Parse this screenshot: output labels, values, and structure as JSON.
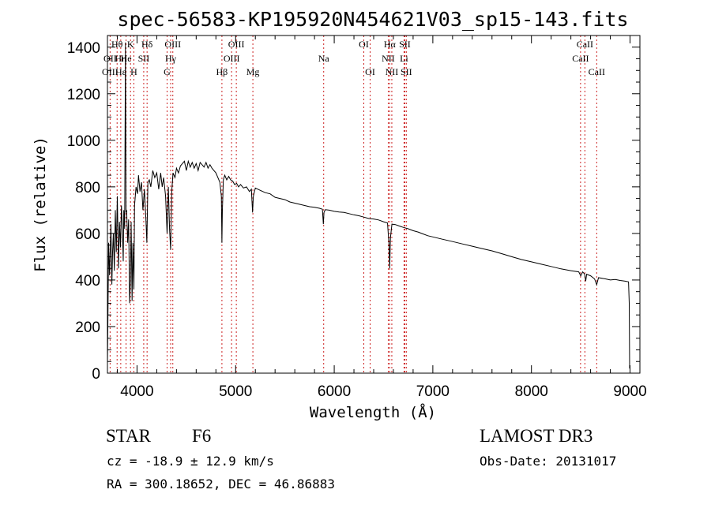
{
  "chart_data": {
    "type": "line",
    "title": "spec-56583-KP195920N454621V03_sp15-143.fits",
    "xlabel": "Wavelength (Å)",
    "ylabel": "Flux (relative)",
    "xlim": [
      3700,
      9100
    ],
    "ylim": [
      0,
      1450
    ],
    "xticks": [
      4000,
      5000,
      6000,
      7000,
      8000,
      9000
    ],
    "yticks": [
      0,
      200,
      400,
      600,
      800,
      1000,
      1200,
      1400
    ],
    "series": [
      {
        "name": "flux",
        "points": [
          [
            3700,
            40
          ],
          [
            3705,
            230
          ],
          [
            3712,
            560
          ],
          [
            3722,
            420
          ],
          [
            3735,
            640
          ],
          [
            3745,
            380
          ],
          [
            3752,
            520
          ],
          [
            3760,
            600
          ],
          [
            3770,
            440
          ],
          [
            3780,
            700
          ],
          [
            3790,
            520
          ],
          [
            3800,
            760
          ],
          [
            3812,
            450
          ],
          [
            3822,
            650
          ],
          [
            3832,
            540
          ],
          [
            3842,
            720
          ],
          [
            3852,
            610
          ],
          [
            3860,
            480
          ],
          [
            3866,
            700
          ],
          [
            3875,
            620
          ],
          [
            3883,
            1420
          ],
          [
            3888,
            690
          ],
          [
            3895,
            700
          ],
          [
            3905,
            560
          ],
          [
            3915,
            660
          ],
          [
            3925,
            300
          ],
          [
            3933,
            400
          ],
          [
            3940,
            650
          ],
          [
            3950,
            310
          ],
          [
            3958,
            560
          ],
          [
            3968,
            360
          ],
          [
            3975,
            720
          ],
          [
            3990,
            800
          ],
          [
            4005,
            770
          ],
          [
            4015,
            850
          ],
          [
            4030,
            780
          ],
          [
            4045,
            820
          ],
          [
            4060,
            700
          ],
          [
            4075,
            790
          ],
          [
            4090,
            660
          ],
          [
            4100,
            560
          ],
          [
            4110,
            820
          ],
          [
            4125,
            830
          ],
          [
            4140,
            800
          ],
          [
            4160,
            870
          ],
          [
            4180,
            840
          ],
          [
            4200,
            860
          ],
          [
            4220,
            790
          ],
          [
            4240,
            860
          ],
          [
            4255,
            800
          ],
          [
            4270,
            840
          ],
          [
            4290,
            760
          ],
          [
            4305,
            600
          ],
          [
            4318,
            800
          ],
          [
            4330,
            620
          ],
          [
            4341,
            530
          ],
          [
            4352,
            780
          ],
          [
            4365,
            860
          ],
          [
            4385,
            840
          ],
          [
            4400,
            880
          ],
          [
            4420,
            860
          ],
          [
            4440,
            890
          ],
          [
            4460,
            900
          ],
          [
            4480,
            910
          ],
          [
            4500,
            870
          ],
          [
            4520,
            910
          ],
          [
            4540,
            885
          ],
          [
            4560,
            905
          ],
          [
            4580,
            880
          ],
          [
            4600,
            900
          ],
          [
            4620,
            870
          ],
          [
            4640,
            905
          ],
          [
            4660,
            895
          ],
          [
            4680,
            885
          ],
          [
            4700,
            905
          ],
          [
            4720,
            880
          ],
          [
            4740,
            895
          ],
          [
            4760,
            880
          ],
          [
            4780,
            870
          ],
          [
            4800,
            860
          ],
          [
            4820,
            840
          ],
          [
            4840,
            820
          ],
          [
            4855,
            760
          ],
          [
            4861,
            560
          ],
          [
            4866,
            700
          ],
          [
            4875,
            830
          ],
          [
            4890,
            850
          ],
          [
            4910,
            830
          ],
          [
            4930,
            845
          ],
          [
            4950,
            830
          ],
          [
            4970,
            825
          ],
          [
            4990,
            810
          ],
          [
            5010,
            815
          ],
          [
            5030,
            800
          ],
          [
            5050,
            810
          ],
          [
            5080,
            795
          ],
          [
            5110,
            800
          ],
          [
            5140,
            780
          ],
          [
            5160,
            790
          ],
          [
            5172,
            690
          ],
          [
            5180,
            760
          ],
          [
            5200,
            795
          ],
          [
            5250,
            785
          ],
          [
            5300,
            775
          ],
          [
            5350,
            770
          ],
          [
            5400,
            755
          ],
          [
            5450,
            750
          ],
          [
            5500,
            745
          ],
          [
            5550,
            735
          ],
          [
            5600,
            730
          ],
          [
            5650,
            725
          ],
          [
            5700,
            720
          ],
          [
            5750,
            715
          ],
          [
            5800,
            712
          ],
          [
            5850,
            708
          ],
          [
            5880,
            704
          ],
          [
            5890,
            640
          ],
          [
            5896,
            690
          ],
          [
            5910,
            702
          ],
          [
            5950,
            700
          ],
          [
            6000,
            695
          ],
          [
            6050,
            692
          ],
          [
            6100,
            690
          ],
          [
            6150,
            685
          ],
          [
            6200,
            680
          ],
          [
            6250,
            676
          ],
          [
            6300,
            670
          ],
          [
            6350,
            664
          ],
          [
            6400,
            662
          ],
          [
            6450,
            658
          ],
          [
            6500,
            650
          ],
          [
            6540,
            645
          ],
          [
            6555,
            560
          ],
          [
            6563,
            450
          ],
          [
            6570,
            580
          ],
          [
            6585,
            640
          ],
          [
            6620,
            638
          ],
          [
            6660,
            632
          ],
          [
            6700,
            626
          ],
          [
            6750,
            620
          ],
          [
            6800,
            612
          ],
          [
            6850,
            606
          ],
          [
            6900,
            598
          ],
          [
            6950,
            590
          ],
          [
            7000,
            585
          ],
          [
            7100,
            575
          ],
          [
            7200,
            565
          ],
          [
            7300,
            555
          ],
          [
            7400,
            545
          ],
          [
            7500,
            535
          ],
          [
            7600,
            525
          ],
          [
            7700,
            513
          ],
          [
            7800,
            500
          ],
          [
            7900,
            488
          ],
          [
            8000,
            478
          ],
          [
            8100,
            468
          ],
          [
            8200,
            458
          ],
          [
            8300,
            448
          ],
          [
            8400,
            440
          ],
          [
            8480,
            435
          ],
          [
            8500,
            418
          ],
          [
            8520,
            435
          ],
          [
            8540,
            425
          ],
          [
            8550,
            395
          ],
          [
            8560,
            425
          ],
          [
            8600,
            418
          ],
          [
            8640,
            405
          ],
          [
            8662,
            380
          ],
          [
            8680,
            410
          ],
          [
            8750,
            405
          ],
          [
            8800,
            400
          ],
          [
            8850,
            402
          ],
          [
            8900,
            398
          ],
          [
            8950,
            395
          ],
          [
            8985,
            392
          ],
          [
            8992,
            300
          ],
          [
            8996,
            20
          ]
        ]
      }
    ],
    "spectral_lines": [
      {
        "label": "Hθ",
        "x": 3798,
        "row": 0
      },
      {
        "label": "OII",
        "x": 3727,
        "row": 1
      },
      {
        "label": "OIII",
        "x": 3727,
        "row": 2
      },
      {
        "label": "Hη",
        "x": 3835,
        "row": 1
      },
      {
        "label": "Hε",
        "x": 3835,
        "row": 2
      },
      {
        "label": "K",
        "x": 3934,
        "row": 0
      },
      {
        "label": "He",
        "x": 3889,
        "row": 1
      },
      {
        "label": "H",
        "x": 3968,
        "row": 2
      },
      {
        "label": "SII",
        "x": 4068,
        "row": 1
      },
      {
        "label": "Hδ",
        "x": 4102,
        "row": 0
      },
      {
        "label": "OIII",
        "x": 4363,
        "row": 0
      },
      {
        "label": "Hγ",
        "x": 4341,
        "row": 1
      },
      {
        "label": "G",
        "x": 4305,
        "row": 2
      },
      {
        "label": "Hβ",
        "x": 4861,
        "row": 2
      },
      {
        "label": "OIII",
        "x": 4959,
        "row": 1
      },
      {
        "label": "OIII",
        "x": 5007,
        "row": 0
      },
      {
        "label": "Mg",
        "x": 5175,
        "row": 2
      },
      {
        "label": "Na",
        "x": 5893,
        "row": 1
      },
      {
        "label": "OI",
        "x": 6300,
        "row": 0
      },
      {
        "label": "OI",
        "x": 6364,
        "row": 2
      },
      {
        "label": "Hα",
        "x": 6563,
        "row": 0
      },
      {
        "label": "NII",
        "x": 6548,
        "row": 1
      },
      {
        "label": "NII",
        "x": 6584,
        "row": 2
      },
      {
        "label": "SII",
        "x": 6716,
        "row": 0
      },
      {
        "label": "Li",
        "x": 6708,
        "row": 1
      },
      {
        "label": "SII",
        "x": 6731,
        "row": 2
      },
      {
        "label": "CaII",
        "x": 8542,
        "row": 0
      },
      {
        "label": "CaII",
        "x": 8498,
        "row": 1
      },
      {
        "label": "CaII",
        "x": 8662,
        "row": 2
      }
    ]
  },
  "info": {
    "object_class": "STAR",
    "subclass": "F6",
    "survey": "LAMOST DR3",
    "cz": "cz = -18.9 ± 12.9 km/s",
    "obs_date": "Obs-Date: 20131017",
    "coords": "RA = 300.18652, DEC =  46.86883"
  }
}
